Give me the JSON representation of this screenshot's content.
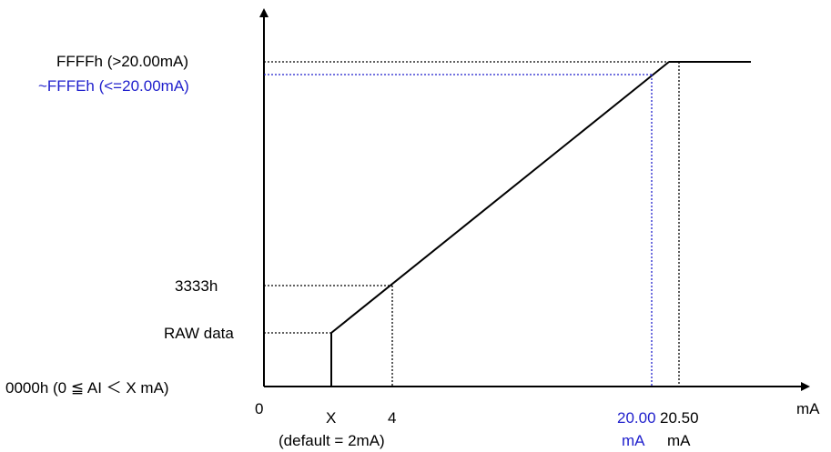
{
  "colors": {
    "axis": "#000000",
    "line": "#000000",
    "guide_black": "#000000",
    "guide_blue": "#1f1fcc",
    "text_black": "#000000",
    "text_blue": "#1f1fcc"
  },
  "y_labels": {
    "ffff": "FFFFh (>20.00mA)",
    "fffe": "~FFFEh (<=20.00mA)",
    "h3333": "3333h",
    "raw": "RAW data",
    "zero": "0000h (0 ≦ AI ＜ X mA)"
  },
  "x_labels": {
    "origin": "0",
    "x": "X",
    "x_note": "(default = 2mA)",
    "four": "4",
    "twenty_value": "20.00",
    "twenty_unit": "mA",
    "twenty_five_value": "20.50",
    "twenty_five_unit": "mA",
    "axis_unit": "mA"
  }
}
